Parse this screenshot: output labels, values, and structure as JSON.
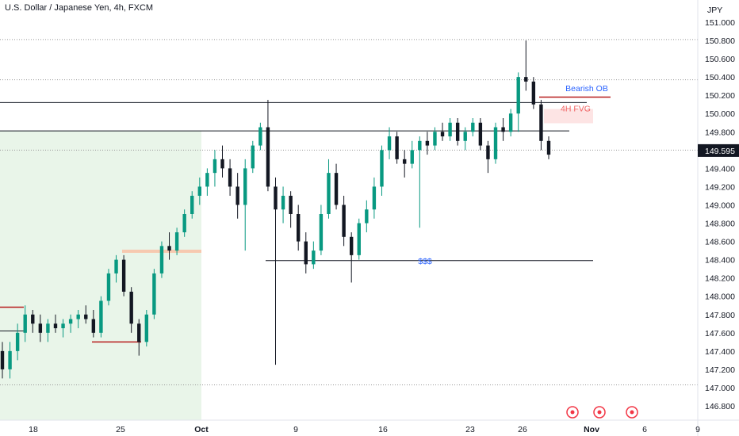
{
  "header": {
    "title": "U.S. Dollar / Japanese Yen, 4h, FXCM"
  },
  "chart_data": {
    "type": "candlestick",
    "title": "U.S. Dollar / Japanese Yen, 4h, FXCM",
    "currency_label": "JPY",
    "y_ticks": [
      "146.800",
      "147.000",
      "147.200",
      "147.400",
      "147.600",
      "147.800",
      "148.000",
      "148.200",
      "148.400",
      "148.600",
      "148.800",
      "149.000",
      "149.200",
      "149.400",
      "149.600",
      "149.800",
      "150.000",
      "150.200",
      "150.400",
      "150.600",
      "150.800",
      "151.000"
    ],
    "ylim": [
      146.65,
      151.4
    ],
    "x_ticks": [
      "18",
      "25",
      "Oct",
      "9",
      "16",
      "23",
      "26",
      "Nov",
      "6",
      "9"
    ],
    "current_price": {
      "label": "149.595",
      "value": 149.595,
      "color": "#131722"
    },
    "colors": {
      "up": "#089981",
      "down": "#131722",
      "zone": "#e9f5e9",
      "level": "#b71c1c"
    },
    "horizontal_levels": [
      {
        "price": 150.12,
        "style": "solid",
        "color": "#131722"
      },
      {
        "price": 149.81,
        "style": "solid",
        "color": "#131722"
      },
      {
        "price": 148.39,
        "style": "solid",
        "color": "#131722"
      },
      {
        "price": 150.81,
        "style": "dotted",
        "color": "#999999"
      },
      {
        "price": 150.37,
        "style": "dotted",
        "color": "#999999"
      },
      {
        "price": 149.6,
        "style": "dotted",
        "color": "#999999"
      },
      {
        "price": 147.03,
        "style": "dotted",
        "color": "#999999"
      }
    ],
    "annotations": [
      {
        "text": "Bearish OB",
        "color": "#2962ff",
        "price": 150.2
      },
      {
        "text": "4H FVG",
        "color": "#f06060",
        "price": 149.98
      },
      {
        "text": "$$$",
        "color": "#2962ff",
        "price": 148.39
      }
    ],
    "candles": [
      [
        147.4,
        147.5,
        147.1,
        147.2
      ],
      [
        147.2,
        147.5,
        147.1,
        147.4
      ],
      [
        147.4,
        147.7,
        147.3,
        147.6
      ],
      [
        147.6,
        147.9,
        147.5,
        147.8
      ],
      [
        147.8,
        147.85,
        147.6,
        147.7
      ],
      [
        147.7,
        147.8,
        147.5,
        147.6
      ],
      [
        147.6,
        147.75,
        147.5,
        147.7
      ],
      [
        147.7,
        147.8,
        147.6,
        147.65
      ],
      [
        147.65,
        147.75,
        147.55,
        147.7
      ],
      [
        147.7,
        147.8,
        147.6,
        147.75
      ],
      [
        147.75,
        147.85,
        147.65,
        147.8
      ],
      [
        147.8,
        147.9,
        147.7,
        147.75
      ],
      [
        147.75,
        147.85,
        147.55,
        147.6
      ],
      [
        147.6,
        148.0,
        147.55,
        147.95
      ],
      [
        147.95,
        148.3,
        147.9,
        148.25
      ],
      [
        148.25,
        148.45,
        148.15,
        148.4
      ],
      [
        148.4,
        148.45,
        148.0,
        148.05
      ],
      [
        148.05,
        148.1,
        147.6,
        147.7
      ],
      [
        147.7,
        147.75,
        147.35,
        147.5
      ],
      [
        147.5,
        147.85,
        147.45,
        147.8
      ],
      [
        147.8,
        148.3,
        147.75,
        148.25
      ],
      [
        148.25,
        148.6,
        148.2,
        148.55
      ],
      [
        148.55,
        148.7,
        148.4,
        148.5
      ],
      [
        148.5,
        148.75,
        148.45,
        148.7
      ],
      [
        148.7,
        148.95,
        148.65,
        148.9
      ],
      [
        148.9,
        149.15,
        148.85,
        149.1
      ],
      [
        149.1,
        149.3,
        149.0,
        149.2
      ],
      [
        149.2,
        149.4,
        149.1,
        149.35
      ],
      [
        149.35,
        149.6,
        149.2,
        149.5
      ],
      [
        149.5,
        149.65,
        149.3,
        149.4
      ],
      [
        149.4,
        149.5,
        149.1,
        149.2
      ],
      [
        149.2,
        149.35,
        148.85,
        149.0
      ],
      [
        149.0,
        149.5,
        148.5,
        149.4
      ],
      [
        149.4,
        149.7,
        149.35,
        149.65
      ],
      [
        149.65,
        149.9,
        149.6,
        149.85
      ],
      [
        149.85,
        150.15,
        149.15,
        149.2
      ],
      [
        149.2,
        149.3,
        147.25,
        148.95
      ],
      [
        148.95,
        149.2,
        148.8,
        149.1
      ],
      [
        149.1,
        149.15,
        148.75,
        148.9
      ],
      [
        148.9,
        149.0,
        148.5,
        148.6
      ],
      [
        148.6,
        148.7,
        148.25,
        148.35
      ],
      [
        148.35,
        148.6,
        148.3,
        148.5
      ],
      [
        148.5,
        149.0,
        148.45,
        148.9
      ],
      [
        148.9,
        149.5,
        148.85,
        149.35
      ],
      [
        149.35,
        149.45,
        148.95,
        149.0
      ],
      [
        149.0,
        149.1,
        148.55,
        148.65
      ],
      [
        148.65,
        148.7,
        148.15,
        148.45
      ],
      [
        148.45,
        148.85,
        148.4,
        148.8
      ],
      [
        148.8,
        149.05,
        148.7,
        148.95
      ],
      [
        148.95,
        149.3,
        148.85,
        149.2
      ],
      [
        149.2,
        149.65,
        149.1,
        149.6
      ],
      [
        149.6,
        149.85,
        149.5,
        149.75
      ],
      [
        149.75,
        149.8,
        149.45,
        149.5
      ],
      [
        149.5,
        149.6,
        149.3,
        149.45
      ],
      [
        149.45,
        149.7,
        149.4,
        149.6
      ],
      [
        149.6,
        149.75,
        148.75,
        149.7
      ],
      [
        149.7,
        149.8,
        149.55,
        149.65
      ],
      [
        149.65,
        149.85,
        149.6,
        149.8
      ],
      [
        149.8,
        149.9,
        149.7,
        149.75
      ],
      [
        149.75,
        149.95,
        149.7,
        149.9
      ],
      [
        149.9,
        149.95,
        149.65,
        149.7
      ],
      [
        149.7,
        149.85,
        149.6,
        149.8
      ],
      [
        149.8,
        149.95,
        149.75,
        149.9
      ],
      [
        149.9,
        149.95,
        149.6,
        149.65
      ],
      [
        149.65,
        149.7,
        149.35,
        149.5
      ],
      [
        149.5,
        149.9,
        149.45,
        149.85
      ],
      [
        149.85,
        149.95,
        149.7,
        149.8
      ],
      [
        149.8,
        150.05,
        149.75,
        150.0
      ],
      [
        150.0,
        150.45,
        149.8,
        150.4
      ],
      [
        150.4,
        150.8,
        150.25,
        150.35
      ],
      [
        150.35,
        150.4,
        150.05,
        150.1
      ],
      [
        150.1,
        150.15,
        149.6,
        149.7
      ],
      [
        149.7,
        149.75,
        149.5,
        149.55
      ]
    ]
  }
}
